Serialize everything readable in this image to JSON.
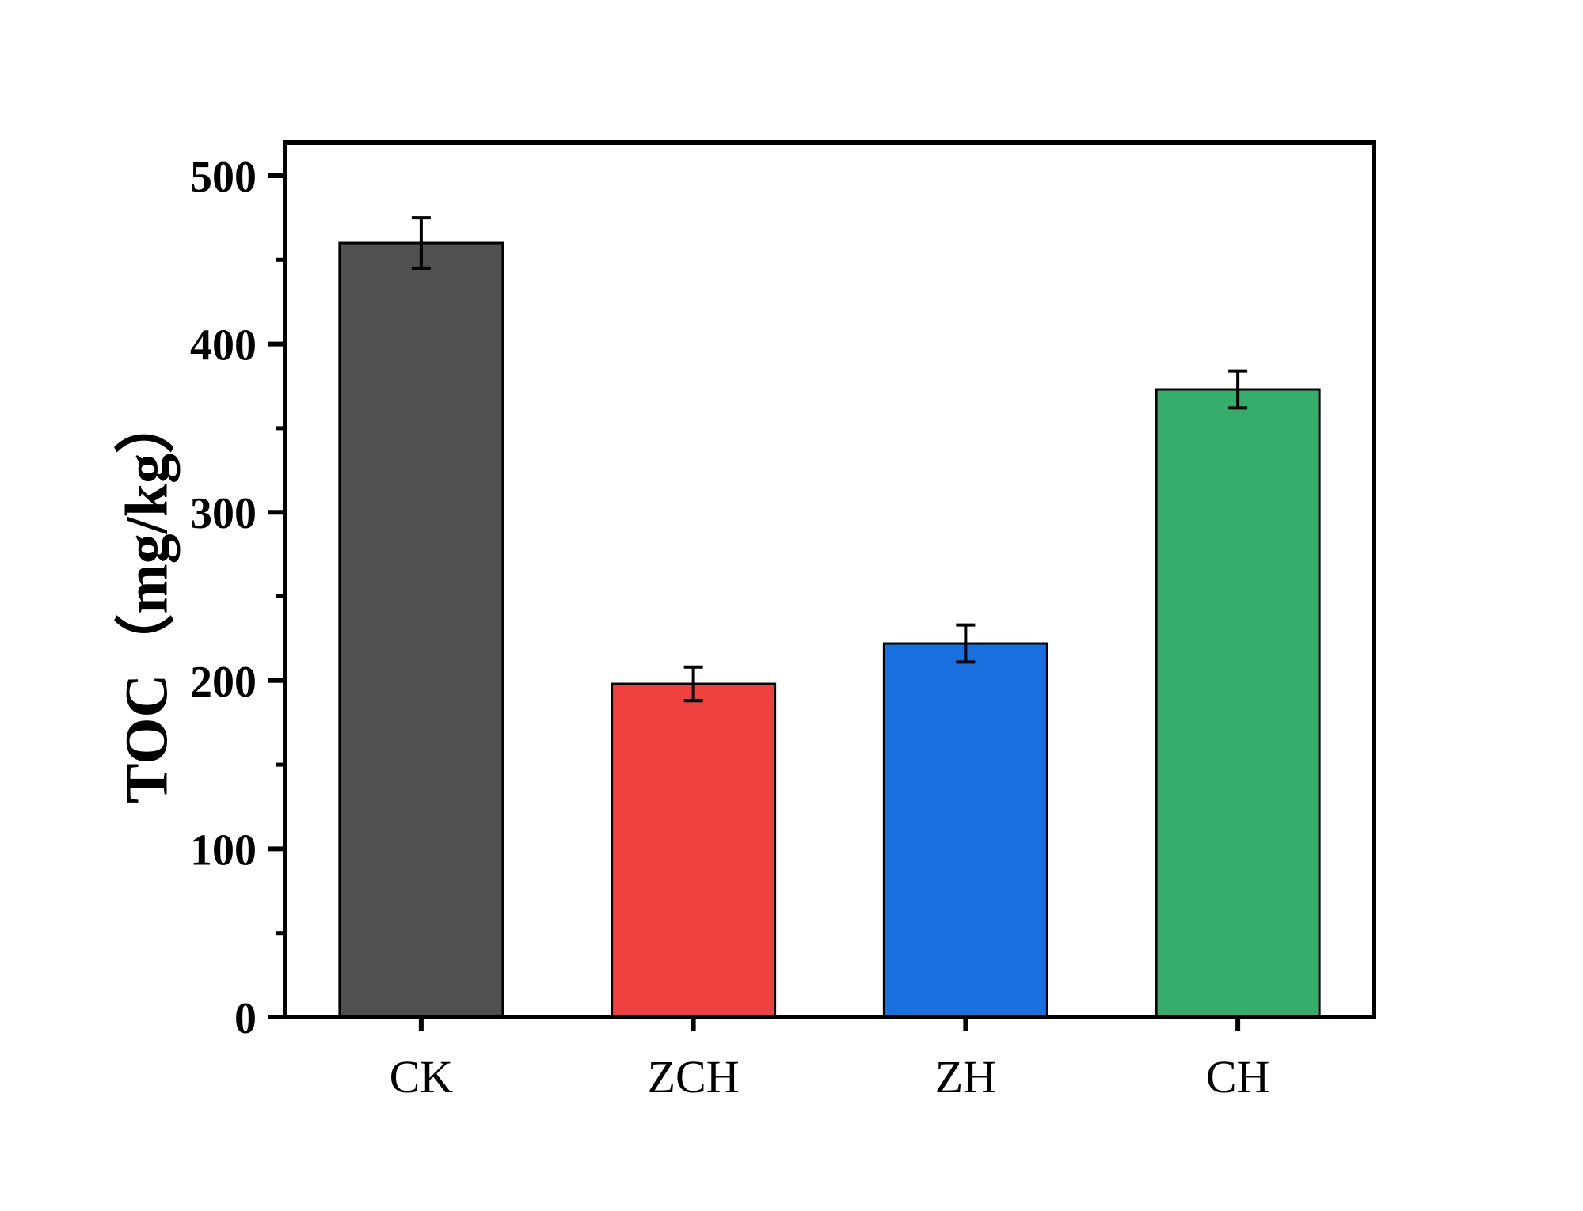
{
  "chart_data": {
    "type": "bar",
    "categories": [
      "CK",
      "ZCH",
      "ZH",
      "CH"
    ],
    "values": [
      460,
      198,
      222,
      373
    ],
    "errors": [
      15,
      10,
      11,
      11
    ],
    "colors": [
      "#505050",
      "#ef4040",
      "#1a6fdf",
      "#37ad6b"
    ],
    "ylabel": "TOC（mg/kg）",
    "ylim": [
      0,
      520
    ],
    "yticks": [
      "0",
      "100",
      "200",
      "300",
      "400",
      "500"
    ],
    "ytick_values": [
      0,
      100,
      200,
      300,
      400,
      500
    ],
    "grid": false
  }
}
